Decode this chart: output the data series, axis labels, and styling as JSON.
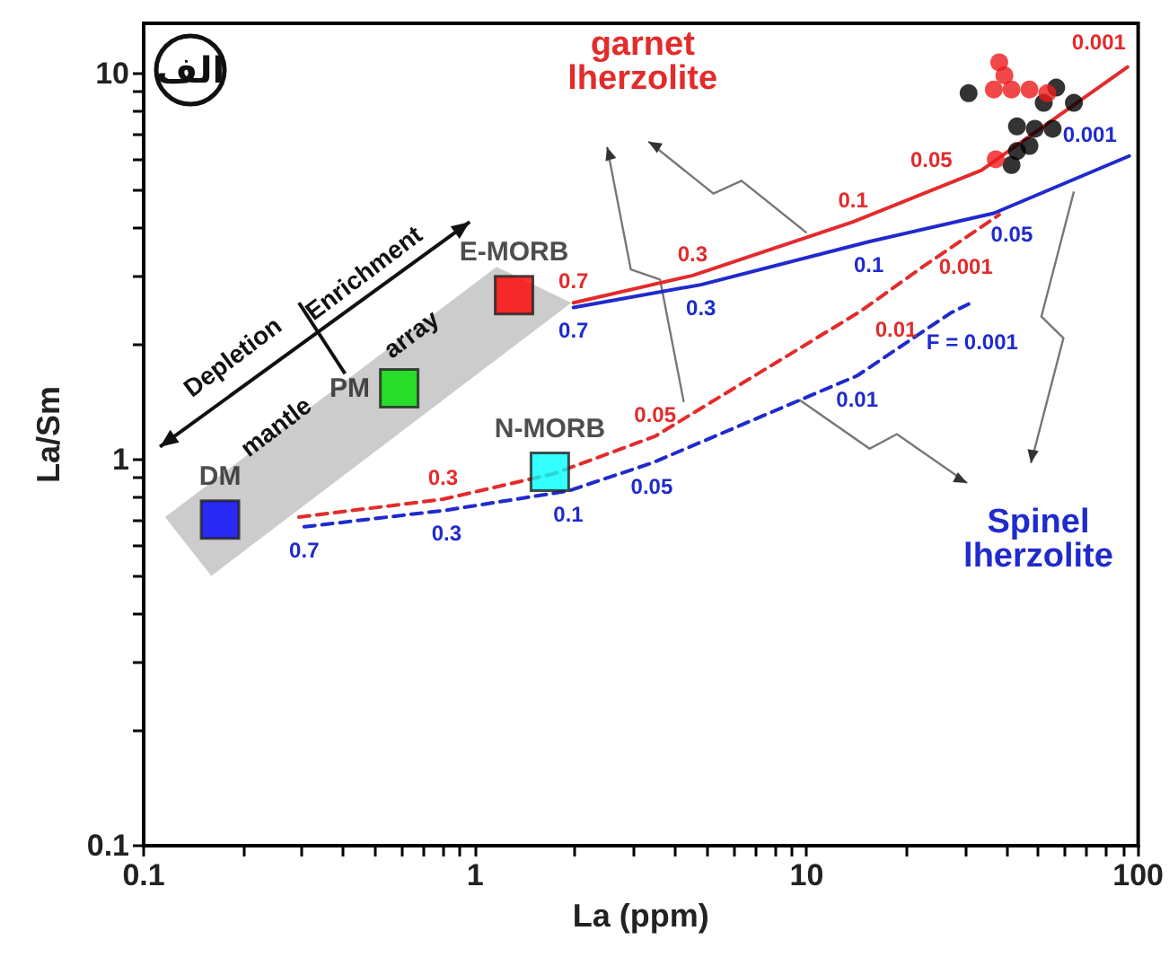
{
  "chart_data": {
    "type": "scatter",
    "xlabel": "La (ppm)",
    "ylabel": "La/Sm",
    "log": "xy",
    "grid": false,
    "legend": false,
    "xlim": [
      0.1,
      100
    ],
    "ylim": [
      0.1,
      13.5
    ],
    "xticks": [
      0.1,
      {
        "value": 0.2,
        "label": null
      },
      {
        "value": 0.3,
        "label": null
      },
      {
        "value": 0.4,
        "label": null
      },
      {
        "value": 0.5,
        "label": null
      },
      {
        "value": 0.6,
        "label": null
      },
      {
        "value": 0.7,
        "label": null
      },
      {
        "value": 0.8,
        "label": null
      },
      {
        "value": 0.9,
        "label": null
      },
      1,
      {
        "value": 2,
        "label": null
      },
      {
        "value": 3,
        "label": null
      },
      {
        "value": 4,
        "label": null
      },
      {
        "value": 5,
        "label": null
      },
      {
        "value": 6,
        "label": null
      },
      {
        "value": 7,
        "label": null
      },
      {
        "value": 8,
        "label": null
      },
      {
        "value": 9,
        "label": null
      },
      10,
      {
        "value": 20,
        "label": null
      },
      {
        "value": 30,
        "label": null
      },
      {
        "value": 40,
        "label": null
      },
      {
        "value": 50,
        "label": null
      },
      {
        "value": 60,
        "label": null
      },
      {
        "value": 70,
        "label": null
      },
      {
        "value": 80,
        "label": null
      },
      {
        "value": 90,
        "label": null
      },
      100
    ],
    "yticks": [
      0.1,
      {
        "value": 0.2,
        "label": null
      },
      {
        "value": 0.3,
        "label": null
      },
      {
        "value": 0.4,
        "label": null
      },
      {
        "value": 0.5,
        "label": null
      },
      {
        "value": 0.6,
        "label": null
      },
      {
        "value": 0.7,
        "label": null
      },
      {
        "value": 0.8,
        "label": null
      },
      {
        "value": 0.9,
        "label": null
      },
      1,
      {
        "value": 2,
        "label": null
      },
      {
        "value": 3,
        "label": null
      },
      {
        "value": 4,
        "label": null
      },
      {
        "value": 5,
        "label": null
      },
      {
        "value": 6,
        "label": null
      },
      {
        "value": 7,
        "label": null
      },
      {
        "value": 8,
        "label": null
      },
      {
        "value": 9,
        "label": null
      },
      10
    ],
    "series": [
      {
        "type": "line",
        "color": "#e32b2b",
        "line_style": "solid",
        "marker": "none",
        "x": [
          1.98,
          4.53,
          13.8,
          33.7,
          92.9
        ],
        "values": [
          2.55,
          3.0,
          4.13,
          5.62,
          10.4
        ]
      },
      {
        "type": "line",
        "color": "#1f2bcc",
        "line_style": "solid",
        "marker": "none",
        "x": [
          1.98,
          4.8,
          15.4,
          36.7,
          94
        ],
        "values": [
          2.48,
          2.84,
          3.67,
          4.35,
          6.12
        ]
      },
      {
        "type": "line",
        "color": "#e32b2b",
        "line_style": "dashed",
        "marker": "none",
        "x": [
          0.294,
          0.8,
          1.73,
          3.49,
          14.5,
          22.4,
          38.1
        ],
        "values": [
          0.71,
          0.79,
          0.92,
          1.15,
          2.42,
          3.16,
          4.31
        ]
      },
      {
        "type": "line",
        "color": "#1f2bcc",
        "line_style": "dashed",
        "marker": "none",
        "x": [
          0.305,
          0.82,
          1.91,
          3.41,
          14.2,
          27.2,
          30.8
        ],
        "values": [
          0.67,
          0.74,
          0.83,
          0.98,
          1.65,
          2.4,
          2.53
        ]
      },
      {
        "name": "DM",
        "marker": "square",
        "color": "#0000ff",
        "x": [
          0.17
        ],
        "values": [
          0.7
        ]
      },
      {
        "name": "PM",
        "marker": "square",
        "color": "#00e000",
        "x": [
          0.59
        ],
        "values": [
          1.53
        ]
      },
      {
        "name": "E-MORB",
        "marker": "square",
        "color": "#ff0000",
        "x": [
          1.31
        ],
        "values": [
          2.67
        ]
      },
      {
        "name": "N-MORB",
        "marker": "square",
        "color": "#00ffff",
        "x": [
          1.68
        ],
        "values": [
          0.93
        ]
      },
      {
        "marker": "circle",
        "color": "#000000",
        "x": [
          30.8,
          56.6,
          64,
          51.9,
          43.1,
          48.8,
          55.2,
          43.1,
          47,
          41.5
        ],
        "values": [
          8.9,
          9.2,
          8.4,
          8.4,
          7.3,
          7.2,
          7.2,
          6.3,
          6.5,
          5.8
        ]
      },
      {
        "marker": "circle",
        "color": "#ee1c1c",
        "x": [
          38.1,
          39.5,
          36.7,
          41.5,
          47,
          53.2,
          37.2
        ],
        "values": [
          10.7,
          9.9,
          9.1,
          9.1,
          9.1,
          8.9,
          6.0
        ]
      }
    ],
    "annotations": [
      "الف",
      {
        "text": "garnet\nlherzolite",
        "x": 10,
        "y": 3.87
      },
      {
        "text": "Spinel\nlherzolite",
        "x": 9.5,
        "y": 1.43
      },
      "Depletion",
      "mantle",
      "Enrichment",
      "array",
      {
        "text": "0.7",
        "x": 1.98,
        "y": 2.55
      },
      {
        "text": "0.3",
        "x": 4.53,
        "y": 3.0
      },
      {
        "text": "0.1",
        "x": 13.8,
        "y": 4.13
      },
      {
        "text": "0.05",
        "x": 33.7,
        "y": 5.62
      },
      {
        "text": "0.001",
        "x": 92.9,
        "y": 10.4
      },
      {
        "text": "0.7",
        "x": 1.98,
        "y": 2.48
      },
      {
        "text": "0.3",
        "x": 4.8,
        "y": 2.84
      },
      {
        "text": "0.1",
        "x": 15.4,
        "y": 3.67
      },
      {
        "text": "0.05",
        "x": 36.7,
        "y": 4.35
      },
      {
        "text": "0.001",
        "x": 94,
        "y": 6.12
      },
      {
        "text": "0.3",
        "x": 0.8,
        "y": 0.79
      },
      {
        "text": "0.05",
        "x": 3.49,
        "y": 1.15
      },
      {
        "text": "0.01",
        "x": 14.5,
        "y": 2.42
      },
      {
        "text": "0.001",
        "x": 22.4,
        "y": 3.16
      },
      {
        "text": "0.7",
        "x": 0.305,
        "y": 0.67
      },
      {
        "text": "0.3",
        "x": 0.82,
        "y": 0.74
      },
      {
        "text": "0.1",
        "x": 1.91,
        "y": 0.83
      },
      {
        "text": "0.05",
        "x": 3.41,
        "y": 0.98
      },
      {
        "text": "0.01",
        "x": 14.2,
        "y": 1.65
      },
      {
        "text": "F = 0.001",
        "x": 27.2,
        "y": 2.4
      }
    ]
  }
}
